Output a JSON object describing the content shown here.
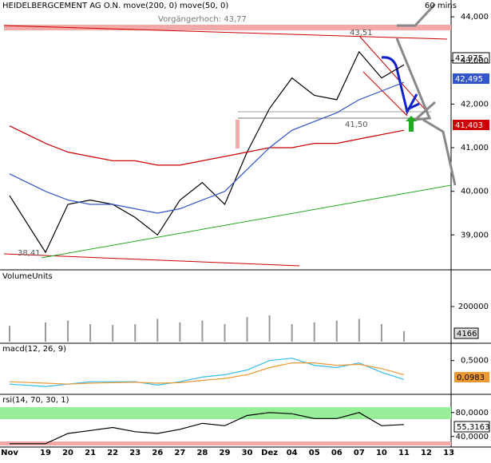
{
  "chart_data": [
    {
      "type": "line",
      "title": "HEIDELBERGCEMENT AG O.N. move(200, 0) move(50, 0)",
      "annotations": [
        "Vorgängerhoch: 43,77",
        "43,51",
        "41,50",
        "38,41",
        "60 mins"
      ],
      "price_labels": [
        "42,975",
        "42,495",
        "41,403"
      ],
      "categories": [
        "Nov",
        "19",
        "20",
        "21",
        "22",
        "23",
        "26",
        "27",
        "28",
        "29",
        "30",
        "Dez",
        "04",
        "05",
        "06",
        "07",
        "10",
        "11",
        "12",
        "13"
      ],
      "series": [
        {
          "name": "close",
          "color": "#000000",
          "values": [
            39.9,
            38.6,
            39.7,
            39.8,
            39.7,
            39.4,
            39.0,
            39.8,
            40.2,
            39.7,
            40.9,
            41.9,
            42.6,
            42.2,
            42.1,
            43.2,
            42.6,
            42.9,
            null,
            null
          ]
        },
        {
          "name": "move(200, 0)",
          "color": "#cc0000",
          "values": [
            41.5,
            41.1,
            40.9,
            40.8,
            40.7,
            40.7,
            40.6,
            40.6,
            40.7,
            40.8,
            40.9,
            41.0,
            41.0,
            41.1,
            41.1,
            41.2,
            41.3,
            41.4,
            null,
            null
          ]
        },
        {
          "name": "move(50, 0)",
          "color": "#3355cc",
          "values": [
            40.4,
            40.0,
            39.8,
            39.7,
            39.7,
            39.6,
            39.5,
            39.6,
            39.8,
            40.0,
            40.5,
            41.0,
            41.4,
            41.6,
            41.8,
            42.1,
            42.3,
            42.5,
            null,
            null
          ]
        }
      ],
      "ylim": [
        38.2,
        44.35
      ],
      "yticks": [
        {
          "value": 44,
          "label": "44,000"
        },
        {
          "value": 43,
          "label": "43,000"
        },
        {
          "value": 42,
          "label": "42,000"
        },
        {
          "value": 41,
          "label": "41,000"
        },
        {
          "value": 40,
          "label": "40,000"
        },
        {
          "value": 39,
          "label": "39,000"
        }
      ]
    },
    {
      "type": "bar",
      "title": "VolumeUnits",
      "last_label": "4166",
      "color": "#999999",
      "values": [
        90000,
        110000,
        120000,
        100000,
        95000,
        100000,
        130000,
        110000,
        120000,
        100000,
        140000,
        150000,
        100000,
        110000,
        120000,
        130000,
        100000,
        60000,
        null,
        null
      ],
      "ylim": [
        0,
        400000
      ],
      "yticks": [
        200000
      ]
    },
    {
      "type": "line",
      "title": "macd(12, 26, 9)",
      "last_label": "0,0983",
      "series": [
        {
          "name": "macd",
          "color": "#33bbee",
          "values": [
            0.0,
            -0.05,
            0.0,
            0.05,
            0.05,
            0.05,
            -0.02,
            0.05,
            0.15,
            0.2,
            0.3,
            0.5,
            0.55,
            0.4,
            0.35,
            0.45,
            0.25,
            0.1,
            null,
            null
          ]
        },
        {
          "name": "signal",
          "color": "#ee9933",
          "values": [
            0.05,
            0.02,
            0.0,
            0.02,
            0.03,
            0.04,
            0.02,
            0.03,
            0.08,
            0.12,
            0.2,
            0.35,
            0.45,
            0.45,
            0.4,
            0.42,
            0.33,
            0.2,
            null,
            null
          ]
        }
      ],
      "ylim": [
        -0.2,
        0.85
      ],
      "yticks": [
        {
          "value": 0.5,
          "label": "0,5000"
        }
      ]
    },
    {
      "type": "line",
      "title": "rsi(14, 70, 30, 1)",
      "last_label": "55,3163",
      "series": [
        {
          "name": "rsi",
          "color": "#000000",
          "values": [
            28,
            28,
            45,
            50,
            55,
            48,
            45,
            52,
            62,
            58,
            75,
            80,
            78,
            70,
            70,
            80,
            58,
            60,
            null,
            null
          ]
        }
      ],
      "ylim": [
        25,
        109
      ],
      "yticks": [
        {
          "value": 80,
          "label": "80,0000"
        },
        {
          "value": 40,
          "label": "40,0000"
        }
      ]
    }
  ]
}
